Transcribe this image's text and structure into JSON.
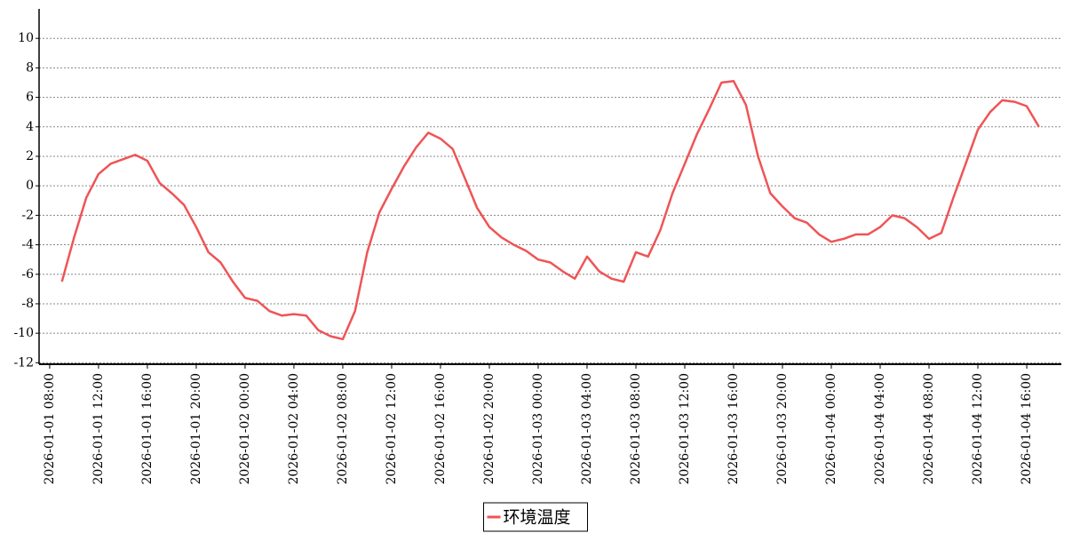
{
  "chart_data": {
    "type": "line",
    "x": [
      "2026-01-01 09:00",
      "2026-01-01 10:00",
      "2026-01-01 11:00",
      "2026-01-01 12:00",
      "2026-01-01 13:00",
      "2026-01-01 14:00",
      "2026-01-01 15:00",
      "2026-01-01 16:00",
      "2026-01-01 17:00",
      "2026-01-01 18:00",
      "2026-01-01 19:00",
      "2026-01-01 20:00",
      "2026-01-01 21:00",
      "2026-01-01 22:00",
      "2026-01-01 23:00",
      "2026-01-02 00:00",
      "2026-01-02 01:00",
      "2026-01-02 02:00",
      "2026-01-02 03:00",
      "2026-01-02 04:00",
      "2026-01-02 05:00",
      "2026-01-02 06:00",
      "2026-01-02 07:00",
      "2026-01-02 08:00",
      "2026-01-02 09:00",
      "2026-01-02 10:00",
      "2026-01-02 11:00",
      "2026-01-02 12:00",
      "2026-01-02 13:00",
      "2026-01-02 14:00",
      "2026-01-02 15:00",
      "2026-01-02 16:00",
      "2026-01-02 17:00",
      "2026-01-02 18:00",
      "2026-01-02 19:00",
      "2026-01-02 20:00",
      "2026-01-02 21:00",
      "2026-01-02 22:00",
      "2026-01-02 23:00",
      "2026-01-03 00:00",
      "2026-01-03 01:00",
      "2026-01-03 02:00",
      "2026-01-03 03:00",
      "2026-01-03 04:00",
      "2026-01-03 05:00",
      "2026-01-03 06:00",
      "2026-01-03 07:00",
      "2026-01-03 08:00",
      "2026-01-03 09:00",
      "2026-01-03 10:00",
      "2026-01-03 11:00",
      "2026-01-03 12:00",
      "2026-01-03 13:00",
      "2026-01-03 14:00",
      "2026-01-03 15:00",
      "2026-01-03 16:00",
      "2026-01-03 17:00",
      "2026-01-03 18:00",
      "2026-01-03 19:00",
      "2026-01-03 20:00",
      "2026-01-03 21:00",
      "2026-01-03 22:00",
      "2026-01-03 23:00",
      "2026-01-04 00:00",
      "2026-01-04 01:00",
      "2026-01-04 02:00",
      "2026-01-04 03:00",
      "2026-01-04 04:00",
      "2026-01-04 05:00",
      "2026-01-04 06:00",
      "2026-01-04 07:00",
      "2026-01-04 08:00",
      "2026-01-04 09:00",
      "2026-01-04 10:00",
      "2026-01-04 11:00",
      "2026-01-04 12:00",
      "2026-01-04 13:00",
      "2026-01-04 14:00",
      "2026-01-04 15:00",
      "2026-01-04 16:00",
      "2026-01-04 17:00"
    ],
    "series": [
      {
        "name": "环境温度",
        "color": "#ef5456",
        "values": [
          -6.5,
          -3.5,
          -0.8,
          0.8,
          1.5,
          1.8,
          2.1,
          1.7,
          0.2,
          -0.5,
          -1.3,
          -2.8,
          -4.5,
          -5.2,
          -6.5,
          -7.6,
          -7.8,
          -8.5,
          -8.8,
          -8.7,
          -8.8,
          -9.8,
          -10.2,
          -10.4,
          -8.5,
          -4.5,
          -1.8,
          -0.2,
          1.3,
          2.6,
          3.6,
          3.2,
          2.5,
          0.5,
          -1.5,
          -2.8,
          -3.5,
          -4.0,
          -4.4,
          -5.0,
          -5.2,
          -5.8,
          -6.3,
          -4.8,
          -5.8,
          -6.3,
          -6.5,
          -4.5,
          -4.8,
          -3.0,
          -0.5,
          1.5,
          3.5,
          5.2,
          7.0,
          7.1,
          5.5,
          2.0,
          -0.5,
          -1.4,
          -2.2,
          -2.5,
          -3.3,
          -3.8,
          -3.6,
          -3.3,
          -3.3,
          -2.8,
          -2.0,
          -2.2,
          -2.8,
          -3.6,
          -3.2,
          -0.8,
          1.5,
          3.8,
          5.0,
          5.8,
          5.7,
          5.4,
          4.0
        ]
      }
    ],
    "xlim": [
      "2026-01-01 07:08",
      "2026-01-04 18:50"
    ],
    "xticks": [
      {
        "value": "2026-01-01 08:00",
        "label": "2026-01-01  08:00"
      },
      {
        "value": "2026-01-01 12:00",
        "label": "2026-01-01  12:00"
      },
      {
        "value": "2026-01-01 16:00",
        "label": "2026-01-01  16:00"
      },
      {
        "value": "2026-01-01 20:00",
        "label": "2026-01-01  20:00"
      },
      {
        "value": "2026-01-02 00:00",
        "label": "2026-01-02  00:00"
      },
      {
        "value": "2026-01-02 04:00",
        "label": "2026-01-02  04:00"
      },
      {
        "value": "2026-01-02 08:00",
        "label": "2026-01-02  08:00"
      },
      {
        "value": "2026-01-02 12:00",
        "label": "2026-01-02  12:00"
      },
      {
        "value": "2026-01-02 16:00",
        "label": "2026-01-02  16:00"
      },
      {
        "value": "2026-01-02 20:00",
        "label": "2026-01-02  20:00"
      },
      {
        "value": "2026-01-03 00:00",
        "label": "2026-01-03  00:00"
      },
      {
        "value": "2026-01-03 04:00",
        "label": "2026-01-03  04:00"
      },
      {
        "value": "2026-01-03 08:00",
        "label": "2026-01-03  08:00"
      },
      {
        "value": "2026-01-03 12:00",
        "label": "2026-01-03  12:00"
      },
      {
        "value": "2026-01-03 16:00",
        "label": "2026-01-03  16:00"
      },
      {
        "value": "2026-01-03 20:00",
        "label": "2026-01-03  20:00"
      },
      {
        "value": "2026-01-04 00:00",
        "label": "2026-01-04  00:00"
      },
      {
        "value": "2026-01-04 04:00",
        "label": "2026-01-04  04:00"
      },
      {
        "value": "2026-01-04 08:00",
        "label": "2026-01-04  08:00"
      },
      {
        "value": "2026-01-04 12:00",
        "label": "2026-01-04  12:00"
      },
      {
        "value": "2026-01-04 16:00",
        "label": "2026-01-04  16:00"
      }
    ],
    "ylim": [
      -12.1,
      12
    ],
    "yticks": [
      -12,
      -10,
      -8,
      -6,
      -4,
      -2,
      0,
      2,
      4,
      6,
      8,
      10
    ],
    "grid": true,
    "legend": "bottom"
  }
}
